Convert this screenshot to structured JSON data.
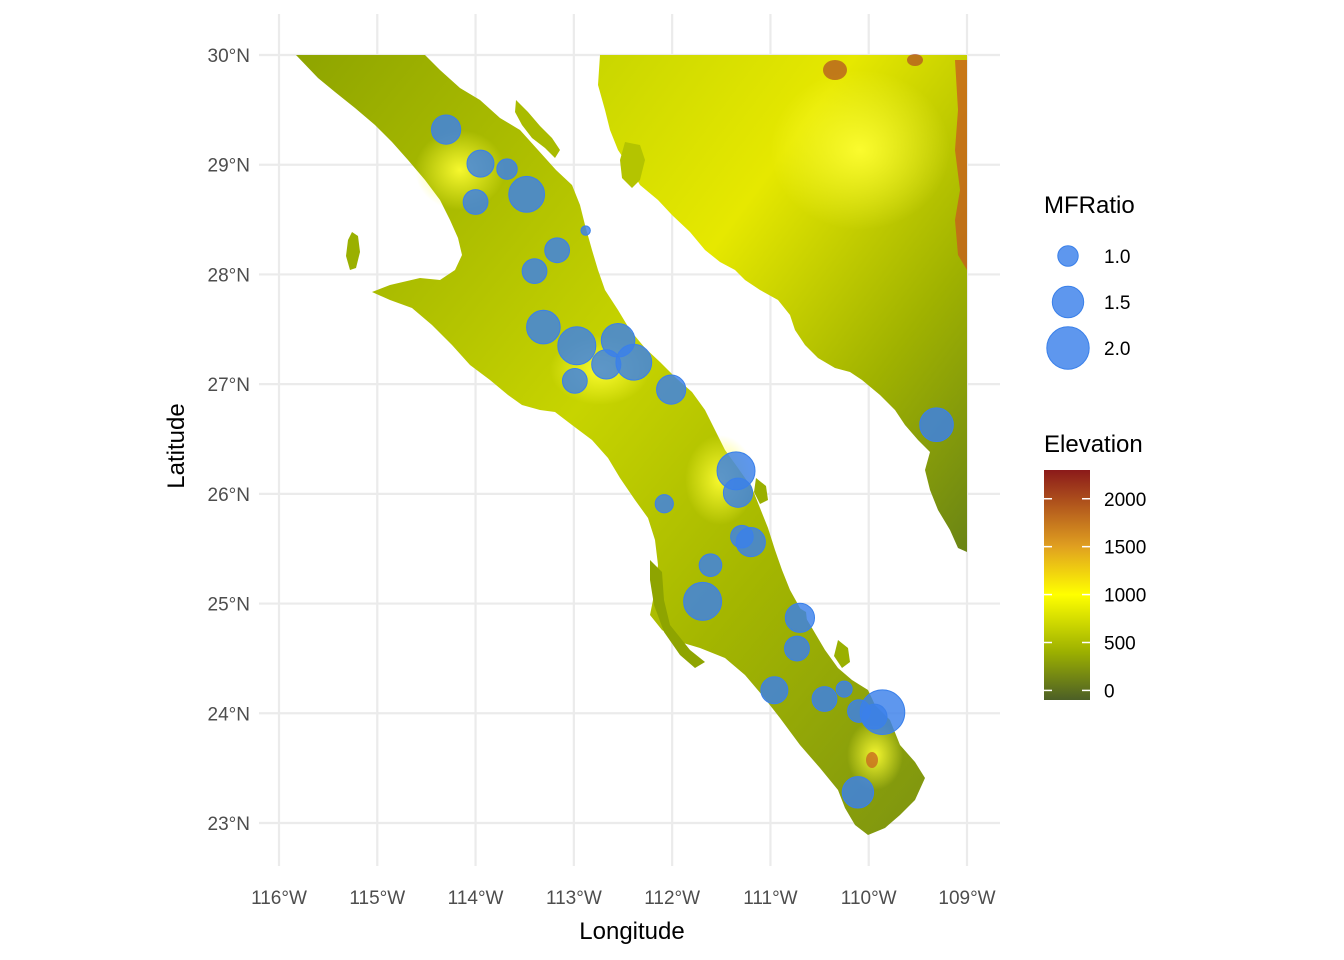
{
  "axes": {
    "x_title": "Longitude",
    "y_title": "Latitude",
    "x_ticks": [
      {
        "value": -116,
        "label": "116°W"
      },
      {
        "value": -115,
        "label": "115°W"
      },
      {
        "value": -114,
        "label": "114°W"
      },
      {
        "value": -113,
        "label": "113°W"
      },
      {
        "value": -112,
        "label": "112°W"
      },
      {
        "value": -111,
        "label": "111°W"
      },
      {
        "value": -110,
        "label": "110°W"
      },
      {
        "value": -109,
        "label": "109°W"
      }
    ],
    "y_ticks": [
      {
        "value": 30,
        "label": "30°N"
      },
      {
        "value": 29,
        "label": "29°N"
      },
      {
        "value": 28,
        "label": "28°N"
      },
      {
        "value": 27,
        "label": "27°N"
      },
      {
        "value": 26,
        "label": "26°N"
      },
      {
        "value": 25,
        "label": "25°N"
      },
      {
        "value": 24,
        "label": "24°N"
      },
      {
        "value": 23,
        "label": "23°N"
      }
    ],
    "xlim": [
      -116.0,
      -109.0
    ],
    "ylim": [
      22.9,
      30.0
    ]
  },
  "legend_size": {
    "title": "MFRatio",
    "entries": [
      {
        "value": 1.0,
        "label": "1.0"
      },
      {
        "value": 1.5,
        "label": "1.5"
      },
      {
        "value": 2.0,
        "label": "2.0"
      }
    ]
  },
  "legend_elevation": {
    "title": "Elevation",
    "range": [
      -100,
      2300
    ],
    "labels": [
      {
        "value": 2000,
        "label": "2000"
      },
      {
        "value": 1500,
        "label": "1500"
      },
      {
        "value": 1000,
        "label": "1000"
      },
      {
        "value": 500,
        "label": "500"
      },
      {
        "value": 0,
        "label": "0"
      }
    ],
    "gradient": [
      {
        "value": -100,
        "color": "#4c5f26"
      },
      {
        "value": 400,
        "color": "#9cb000"
      },
      {
        "value": 1000,
        "color": "#ffff00"
      },
      {
        "value": 1500,
        "color": "#e0a020"
      },
      {
        "value": 2300,
        "color": "#8b1a1a"
      }
    ]
  },
  "colors": {
    "point": "#3a80ea",
    "grid": "#ebebeb",
    "land_low": "#5e7a1c",
    "land_mid": "#aebd00",
    "land_high": "#f2f200"
  },
  "points": [
    {
      "lon": -114.3,
      "lat": 29.32,
      "mf": 1.4
    },
    {
      "lon": -113.95,
      "lat": 29.01,
      "mf": 1.3
    },
    {
      "lon": -113.68,
      "lat": 28.96,
      "mf": 1.0
    },
    {
      "lon": -114.0,
      "lat": 28.66,
      "mf": 1.2
    },
    {
      "lon": -113.48,
      "lat": 28.73,
      "mf": 1.7
    },
    {
      "lon": -112.88,
      "lat": 28.4,
      "mf": 0.5
    },
    {
      "lon": -113.17,
      "lat": 28.22,
      "mf": 1.2
    },
    {
      "lon": -113.4,
      "lat": 28.03,
      "mf": 1.2
    },
    {
      "lon": -113.31,
      "lat": 27.52,
      "mf": 1.6
    },
    {
      "lon": -112.97,
      "lat": 27.35,
      "mf": 1.8
    },
    {
      "lon": -112.55,
      "lat": 27.4,
      "mf": 1.6
    },
    {
      "lon": -112.67,
      "lat": 27.18,
      "mf": 1.4
    },
    {
      "lon": -112.39,
      "lat": 27.2,
      "mf": 1.7
    },
    {
      "lon": -112.99,
      "lat": 27.03,
      "mf": 1.2
    },
    {
      "lon": -112.01,
      "lat": 26.95,
      "mf": 1.4
    },
    {
      "lon": -109.31,
      "lat": 26.63,
      "mf": 1.6
    },
    {
      "lon": -111.35,
      "lat": 26.21,
      "mf": 1.8
    },
    {
      "lon": -111.33,
      "lat": 26.01,
      "mf": 1.4
    },
    {
      "lon": -112.08,
      "lat": 25.91,
      "mf": 0.9
    },
    {
      "lon": -111.29,
      "lat": 25.61,
      "mf": 1.1
    },
    {
      "lon": -111.2,
      "lat": 25.56,
      "mf": 1.4
    },
    {
      "lon": -111.61,
      "lat": 25.35,
      "mf": 1.1
    },
    {
      "lon": -111.69,
      "lat": 25.02,
      "mf": 1.8
    },
    {
      "lon": -110.7,
      "lat": 24.87,
      "mf": 1.4
    },
    {
      "lon": -110.73,
      "lat": 24.59,
      "mf": 1.2
    },
    {
      "lon": -110.25,
      "lat": 24.22,
      "mf": 0.8
    },
    {
      "lon": -110.96,
      "lat": 24.21,
      "mf": 1.3
    },
    {
      "lon": -110.45,
      "lat": 24.13,
      "mf": 1.2
    },
    {
      "lon": -110.1,
      "lat": 24.02,
      "mf": 1.1
    },
    {
      "lon": -109.94,
      "lat": 23.97,
      "mf": 1.2
    },
    {
      "lon": -109.86,
      "lat": 24.01,
      "mf": 2.1
    },
    {
      "lon": -110.11,
      "lat": 23.28,
      "mf": 1.5
    }
  ]
}
